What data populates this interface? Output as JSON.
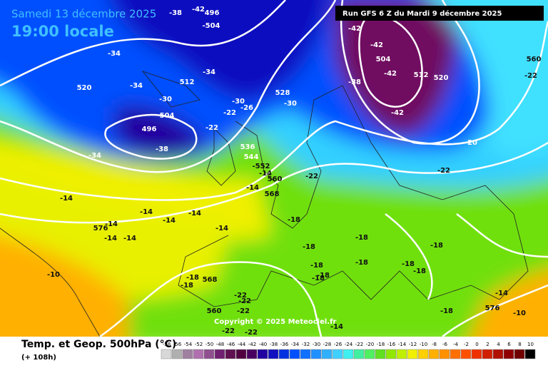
{
  "header": {
    "date": "Samedi 13 décembre 2025",
    "time": "19:00 locale",
    "run": "Run GFS 6 Z du Mardi 9 décembre 2025"
  },
  "footer": {
    "title": "Temp. et Geop. 500hPa (°C)",
    "lead": "(+ 108h)",
    "copyright": "Copyright © 2025 Meteociel.fr"
  },
  "scale": {
    "labels": [
      -58,
      -56,
      -54,
      -52,
      -50,
      -48,
      -46,
      -44,
      -42,
      -40,
      -38,
      -36,
      -34,
      -32,
      -30,
      -28,
      -26,
      -24,
      -22,
      -20,
      -18,
      -16,
      -14,
      -12,
      -10,
      -8,
      -6,
      -4,
      -2,
      0,
      2,
      4,
      6,
      8,
      10
    ],
    "colors": [
      "#d8d8d8",
      "#b0b0b0",
      "#a080a0",
      "#b070b0",
      "#905090",
      "#702070",
      "#601050",
      "#500040",
      "#480060",
      "#2000a0",
      "#1010c0",
      "#0030e0",
      "#0050ff",
      "#1070ff",
      "#2090ff",
      "#30b0ff",
      "#40d0ff",
      "#40f0f0",
      "#40f0a0",
      "#50f060",
      "#60e020",
      "#90e800",
      "#c0f000",
      "#f0f000",
      "#ffd000",
      "#ffb000",
      "#ff9000",
      "#ff7000",
      "#ff5000",
      "#f03000",
      "#d02000",
      "#b01000",
      "#900000",
      "#700000",
      "#000000"
    ]
  },
  "map_labels": [
    "-38",
    "496",
    "-504",
    "-42",
    "-34",
    "-34",
    "512",
    "520",
    "-34",
    "-30",
    "504",
    "496",
    "-38",
    "-22",
    "-26",
    "-30",
    "528",
    "-30",
    "-22",
    "-34",
    "536",
    "544",
    "-552",
    "-14",
    "560",
    "-14",
    "568",
    "-14",
    "-14",
    "-14",
    "-14",
    "576",
    "-14",
    "-14",
    "-14",
    "-14",
    "-18",
    "-10",
    "-18",
    "568",
    "-18",
    "-22",
    "-22",
    "560",
    "-22",
    "-22",
    "-22",
    "-18",
    "-18",
    "-18",
    "-18",
    "-18",
    "-18",
    "-18",
    "-18",
    "-18",
    "-18",
    "-14",
    "-14",
    "576",
    "-10",
    "-22",
    "-22",
    "-20",
    "-42",
    "-42",
    "504",
    "-42",
    "512",
    "520",
    "-38",
    "-42",
    "560",
    "-22"
  ]
}
